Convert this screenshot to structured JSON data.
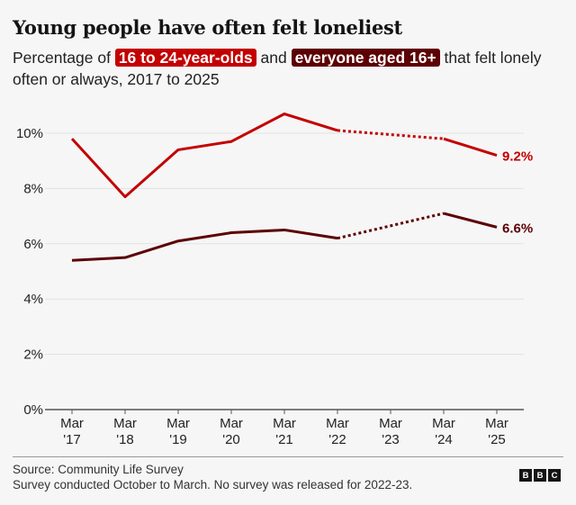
{
  "title": "Young people have often felt loneliest",
  "subtitle": {
    "prefix": "Percentage of ",
    "tag1": "16 to 24-year-olds",
    "middle": " and ",
    "tag2": "everyone aged 16+",
    "suffix": " that felt lonely often or always, 2017 to 2025"
  },
  "chart_data": {
    "type": "line",
    "title": "Young people have often felt loneliest",
    "categories": [
      "Mar '17",
      "Mar '18",
      "Mar '19",
      "Mar '20",
      "Mar '21",
      "Mar '22",
      "Mar '23",
      "Mar '24",
      "Mar '25"
    ],
    "x_ticks": [
      [
        "Mar",
        "'17"
      ],
      [
        "Mar",
        "'18"
      ],
      [
        "Mar",
        "'19"
      ],
      [
        "Mar",
        "'20"
      ],
      [
        "Mar",
        "'21"
      ],
      [
        "Mar",
        "'22"
      ],
      [
        "Mar",
        "'23"
      ],
      [
        "Mar",
        "'24"
      ],
      [
        "Mar",
        "'25"
      ]
    ],
    "ylim": [
      0,
      10
    ],
    "y_ticks": [
      "0%",
      "2%",
      "4%",
      "6%",
      "8%",
      "10%"
    ],
    "grid": true,
    "dotted_between": [
      "Mar '22",
      "Mar '24"
    ],
    "series": [
      {
        "name": "16 to 24-year-olds",
        "color": "#c30000",
        "values": [
          9.8,
          7.7,
          9.4,
          9.7,
          10.7,
          10.1,
          null,
          9.8,
          9.2
        ],
        "end_label": "9.2%"
      },
      {
        "name": "everyone aged 16+",
        "color": "#5c0003",
        "values": [
          5.4,
          5.5,
          6.1,
          6.4,
          6.5,
          6.2,
          null,
          7.1,
          6.6
        ],
        "end_label": "6.6%"
      }
    ]
  },
  "footer": {
    "source": "Source: Community Life Survey",
    "note": "Survey conducted October to March. No survey was released for 2022-23.",
    "logo": "BBC"
  }
}
